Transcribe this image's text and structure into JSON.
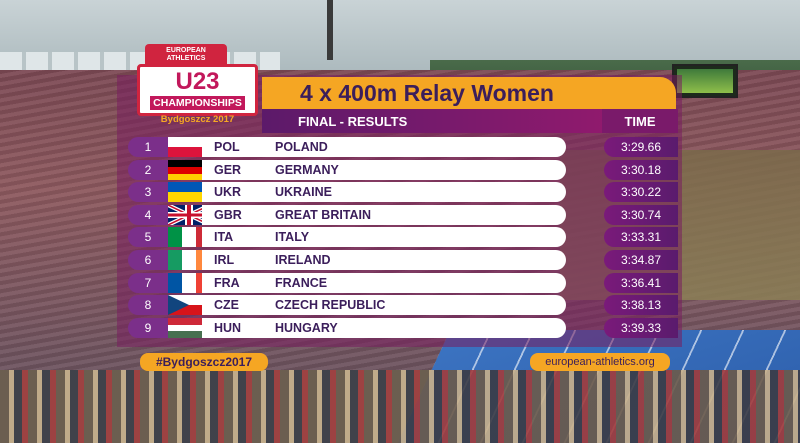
{
  "logo": {
    "line1": "EUROPEAN",
    "line2": "ATHLETICS",
    "main": "U23",
    "championships": "CHAMPIONSHIPS",
    "city": "Bydgoszcz 2017"
  },
  "header": {
    "title": "4 x 400m Relay Women",
    "subtitle": "FINAL - RESULTS",
    "time_label": "TIME"
  },
  "results": [
    {
      "rank": "1",
      "code": "POL",
      "country": "POLAND",
      "time": "3:29.66",
      "flag": "pol-flag-icon"
    },
    {
      "rank": "2",
      "code": "GER",
      "country": "GERMANY",
      "time": "3:30.18",
      "flag": "ger-flag-icon"
    },
    {
      "rank": "3",
      "code": "UKR",
      "country": "UKRAINE",
      "time": "3:30.22",
      "flag": "ukr-flag-icon"
    },
    {
      "rank": "4",
      "code": "GBR",
      "country": "GREAT BRITAIN",
      "time": "3:30.74",
      "flag": "gbr-flag-icon"
    },
    {
      "rank": "5",
      "code": "ITA",
      "country": "ITALY",
      "time": "3:33.31",
      "flag": "ita-flag-icon"
    },
    {
      "rank": "6",
      "code": "IRL",
      "country": "IRELAND",
      "time": "3:34.87",
      "flag": "irl-flag-icon"
    },
    {
      "rank": "7",
      "code": "FRA",
      "country": "FRANCE",
      "time": "3:36.41",
      "flag": "fra-flag-icon"
    },
    {
      "rank": "8",
      "code": "CZE",
      "country": "CZECH REPUBLIC",
      "time": "3:38.13",
      "flag": "cze-flag-icon"
    },
    {
      "rank": "9",
      "code": "HUN",
      "country": "HUNGARY",
      "time": "3:39.33",
      "flag": "hun-flag-icon"
    }
  ],
  "footer": {
    "hashtag": "#Bydgoszcz2017",
    "website": "european-athletics.org"
  },
  "colors": {
    "accent_orange": "#f5a623",
    "brand_purple": "#7b2f8a",
    "brand_red": "#d0243f"
  }
}
